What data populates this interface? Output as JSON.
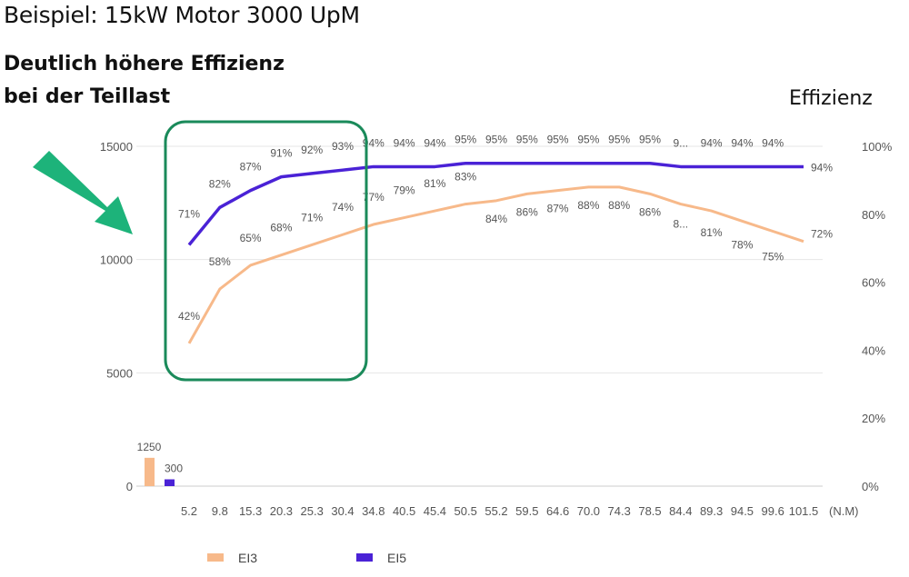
{
  "title": "Beispiel: 15kW Motor 3000 UpM",
  "headline": [
    "Deutlich höhere Effizienz",
    "bei der Teillast"
  ],
  "colors": {
    "EI3": "#f7b98a",
    "EI5": "#4a22d6",
    "highlight_box": "#1a8a5a",
    "arrow": "#1db37a"
  },
  "icons": {
    "arrow": "arrow-down-right-icon"
  },
  "chart_data": {
    "type": "line",
    "xlabel": "(N.M)",
    "ylabel_right": "Effizienz",
    "categories": [
      "5.2",
      "9.8",
      "15.3",
      "20.3",
      "25.3",
      "30.4",
      "34.8",
      "40.5",
      "45.4",
      "50.5",
      "55.2",
      "59.5",
      "64.6",
      "70.0",
      "74.3",
      "78.5",
      "84.4",
      "89.3",
      "94.5",
      "99.6",
      "101.5"
    ],
    "left_axis": {
      "ylim": [
        0,
        15000
      ],
      "ticks": [
        "0",
        "5000",
        "10000",
        "15000"
      ]
    },
    "right_axis": {
      "ylim": [
        0,
        100
      ],
      "ticks": [
        "0%",
        "20%",
        "40%",
        "60%",
        "80%",
        "100%"
      ]
    },
    "grid": true,
    "legend_placement": "bottom",
    "series": [
      {
        "name": "EI3",
        "axis": "right",
        "values": [
          42,
          58,
          65,
          68,
          71,
          74,
          77,
          79,
          81,
          83,
          84,
          86,
          87,
          88,
          88,
          86,
          83,
          81,
          78,
          75,
          72
        ],
        "labels": [
          "42%",
          "58%",
          "65%",
          "68%",
          "71%",
          "74%",
          "77%",
          "79%",
          "81%",
          "83%",
          "84%",
          "86%",
          "87%",
          "88%",
          "88%",
          "86%",
          "8...",
          "81%",
          "78%",
          "75%",
          "72%"
        ]
      },
      {
        "name": "EI5",
        "axis": "right",
        "values": [
          71,
          82,
          87,
          91,
          92,
          93,
          94,
          94,
          94,
          95,
          95,
          95,
          95,
          95,
          95,
          95,
          94,
          94,
          94,
          94,
          94
        ],
        "labels": [
          "71%",
          "82%",
          "87%",
          "91%",
          "92%",
          "93%",
          "94%",
          "94%",
          "94%",
          "95%",
          "95%",
          "95%",
          "95%",
          "95%",
          "95%",
          "95%",
          "9...",
          "94%",
          "94%",
          "94%",
          "94%"
        ]
      }
    ],
    "bars": [
      {
        "name": "EI3",
        "axis": "left",
        "value": 1250,
        "label": "1250"
      },
      {
        "name": "EI5",
        "axis": "left",
        "value": 300,
        "label": "300"
      }
    ]
  }
}
